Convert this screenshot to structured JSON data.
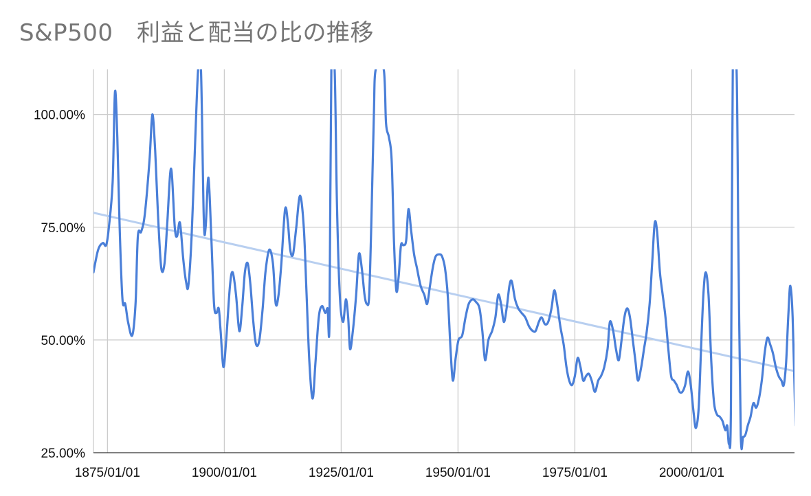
{
  "chart_data": {
    "type": "line",
    "title": "S&P500　利益と配当の比の推移",
    "xlabel": "",
    "ylabel": "",
    "x_ticks": [
      "1875/01/01",
      "1900/01/01",
      "1925/01/01",
      "1950/01/01",
      "1975/01/01",
      "2000/01/01"
    ],
    "y_ticks": [
      "25.00%",
      "50.00%",
      "75.00%",
      "100.00%"
    ],
    "xlim": [
      1872,
      2022
    ],
    "ylim": [
      25,
      110
    ],
    "grid": true,
    "colors": {
      "series": "#4a7fd8",
      "trend": "#b8cff0",
      "grid": "#cccccc"
    },
    "series": [
      {
        "points": [
          [
            1872.0,
            65
          ],
          [
            1873.0,
            70
          ],
          [
            1874.0,
            71.5
          ],
          [
            1874.7,
            71
          ],
          [
            1875.3,
            75
          ],
          [
            1876.1,
            85
          ],
          [
            1876.6,
            105
          ],
          [
            1877.1,
            95
          ],
          [
            1877.6,
            75
          ],
          [
            1878.2,
            59
          ],
          [
            1878.8,
            58
          ],
          [
            1879.4,
            54
          ],
          [
            1880.3,
            51
          ],
          [
            1881.0,
            58
          ],
          [
            1881.5,
            73
          ],
          [
            1882.2,
            74
          ],
          [
            1883.0,
            78
          ],
          [
            1884.0,
            90
          ],
          [
            1884.6,
            100
          ],
          [
            1885.2,
            92
          ],
          [
            1885.8,
            78
          ],
          [
            1886.5,
            66
          ],
          [
            1887.2,
            67
          ],
          [
            1887.8,
            76
          ],
          [
            1888.6,
            88
          ],
          [
            1889.4,
            75
          ],
          [
            1889.9,
            73
          ],
          [
            1890.5,
            76
          ],
          [
            1891.2,
            68
          ],
          [
            1891.8,
            63
          ],
          [
            1892.3,
            62
          ],
          [
            1893.0,
            73
          ],
          [
            1893.8,
            95
          ],
          [
            1894.4,
            110
          ],
          [
            1895.0,
            110
          ],
          [
            1895.6,
            77
          ],
          [
            1896.0,
            75
          ],
          [
            1896.6,
            86
          ],
          [
            1897.2,
            73
          ],
          [
            1897.8,
            58
          ],
          [
            1898.3,
            56
          ],
          [
            1898.8,
            57
          ],
          [
            1899.2,
            52
          ],
          [
            1899.8,
            44
          ],
          [
            1900.4,
            50
          ],
          [
            1901.2,
            62
          ],
          [
            1901.8,
            65
          ],
          [
            1902.5,
            60
          ],
          [
            1903.2,
            52
          ],
          [
            1903.8,
            57
          ],
          [
            1904.4,
            65
          ],
          [
            1905.0,
            67
          ],
          [
            1905.6,
            62
          ],
          [
            1906.2,
            54
          ],
          [
            1906.8,
            49
          ],
          [
            1907.5,
            50
          ],
          [
            1908.2,
            57
          ],
          [
            1908.8,
            65
          ],
          [
            1909.6,
            70
          ],
          [
            1910.4,
            67
          ],
          [
            1911.0,
            58
          ],
          [
            1911.6,
            60
          ],
          [
            1912.2,
            67
          ],
          [
            1913.0,
            79
          ],
          [
            1913.6,
            76
          ],
          [
            1914.1,
            70
          ],
          [
            1914.7,
            69
          ],
          [
            1915.4,
            75
          ],
          [
            1916.2,
            82
          ],
          [
            1917.0,
            75
          ],
          [
            1917.6,
            60
          ],
          [
            1918.2,
            45
          ],
          [
            1918.9,
            37
          ],
          [
            1919.5,
            45
          ],
          [
            1920.2,
            55
          ],
          [
            1920.9,
            57.5
          ],
          [
            1921.6,
            56
          ],
          [
            1922.1,
            57
          ],
          [
            1922.5,
            54
          ],
          [
            1922.9,
            110
          ],
          [
            1923.6,
            110
          ],
          [
            1924.1,
            80
          ],
          [
            1924.7,
            60
          ],
          [
            1925.4,
            54
          ],
          [
            1926.0,
            59
          ],
          [
            1926.5,
            55
          ],
          [
            1926.9,
            48
          ],
          [
            1927.5,
            52
          ],
          [
            1928.2,
            60
          ],
          [
            1928.8,
            69
          ],
          [
            1929.4,
            66
          ],
          [
            1930.0,
            60
          ],
          [
            1930.5,
            58
          ],
          [
            1931.0,
            60
          ],
          [
            1931.5,
            78
          ],
          [
            1932.0,
            100
          ],
          [
            1932.4,
            110
          ],
          [
            1934.1,
            110
          ],
          [
            1934.6,
            98
          ],
          [
            1935.2,
            95
          ],
          [
            1935.8,
            90
          ],
          [
            1936.3,
            72
          ],
          [
            1936.8,
            61
          ],
          [
            1937.3,
            64
          ],
          [
            1937.8,
            71
          ],
          [
            1938.3,
            71
          ],
          [
            1938.9,
            72
          ],
          [
            1939.4,
            79
          ],
          [
            1940.0,
            74
          ],
          [
            1940.6,
            69
          ],
          [
            1941.2,
            66
          ],
          [
            1942.0,
            62
          ],
          [
            1942.8,
            60
          ],
          [
            1943.4,
            58
          ],
          [
            1944.0,
            62
          ],
          [
            1944.6,
            66
          ],
          [
            1945.2,
            68.5
          ],
          [
            1946.0,
            69
          ],
          [
            1946.6,
            68.5
          ],
          [
            1947.2,
            66
          ],
          [
            1947.8,
            60
          ],
          [
            1948.4,
            48
          ],
          [
            1948.9,
            41
          ],
          [
            1949.5,
            46
          ],
          [
            1950.1,
            50
          ],
          [
            1950.9,
            51
          ],
          [
            1951.6,
            55
          ],
          [
            1952.3,
            58
          ],
          [
            1953.1,
            59
          ],
          [
            1953.8,
            58.5
          ],
          [
            1954.6,
            57
          ],
          [
            1955.2,
            52
          ],
          [
            1955.8,
            45.5
          ],
          [
            1956.5,
            50
          ],
          [
            1957.3,
            52
          ],
          [
            1958.0,
            55
          ],
          [
            1958.6,
            60
          ],
          [
            1959.2,
            58
          ],
          [
            1959.8,
            54
          ],
          [
            1960.4,
            57
          ],
          [
            1961.0,
            62
          ],
          [
            1961.5,
            63
          ],
          [
            1962.2,
            59
          ],
          [
            1962.9,
            57
          ],
          [
            1963.6,
            56
          ],
          [
            1964.4,
            55
          ],
          [
            1965.2,
            53
          ],
          [
            1966.0,
            52
          ],
          [
            1966.6,
            52
          ],
          [
            1967.3,
            54
          ],
          [
            1967.9,
            55
          ],
          [
            1968.6,
            53.5
          ],
          [
            1969.3,
            54
          ],
          [
            1970.0,
            57
          ],
          [
            1970.6,
            61
          ],
          [
            1971.2,
            58
          ],
          [
            1971.9,
            53
          ],
          [
            1972.6,
            49
          ],
          [
            1973.2,
            44
          ],
          [
            1973.8,
            41
          ],
          [
            1974.4,
            40
          ],
          [
            1975.0,
            42
          ],
          [
            1975.6,
            46
          ],
          [
            1976.2,
            44
          ],
          [
            1976.8,
            41
          ],
          [
            1977.4,
            42
          ],
          [
            1978.0,
            42.5
          ],
          [
            1978.6,
            41
          ],
          [
            1979.3,
            38.5
          ],
          [
            1980.0,
            41
          ],
          [
            1980.6,
            42
          ],
          [
            1981.3,
            44
          ],
          [
            1982.0,
            48
          ],
          [
            1982.5,
            54
          ],
          [
            1983.2,
            52
          ],
          [
            1983.8,
            48
          ],
          [
            1984.4,
            45.5
          ],
          [
            1985.0,
            50
          ],
          [
            1985.6,
            55
          ],
          [
            1986.2,
            57
          ],
          [
            1986.8,
            55
          ],
          [
            1987.4,
            50
          ],
          [
            1988.0,
            45
          ],
          [
            1988.5,
            41
          ],
          [
            1989.2,
            44
          ],
          [
            1989.8,
            48
          ],
          [
            1990.4,
            52
          ],
          [
            1991.0,
            58
          ],
          [
            1991.6,
            68
          ],
          [
            1992.1,
            76
          ],
          [
            1992.6,
            74
          ],
          [
            1993.2,
            65
          ],
          [
            1993.8,
            60
          ],
          [
            1994.4,
            55
          ],
          [
            1995.0,
            48
          ],
          [
            1995.6,
            42
          ],
          [
            1996.2,
            41
          ],
          [
            1996.8,
            40
          ],
          [
            1997.4,
            38.5
          ],
          [
            1998.0,
            38.5
          ],
          [
            1998.6,
            40
          ],
          [
            1999.2,
            43
          ],
          [
            1999.8,
            40
          ],
          [
            2000.4,
            34
          ],
          [
            2000.9,
            30.5
          ],
          [
            2001.5,
            35
          ],
          [
            2002.0,
            48
          ],
          [
            2002.5,
            60
          ],
          [
            2003.0,
            65
          ],
          [
            2003.6,
            60
          ],
          [
            2004.2,
            45
          ],
          [
            2004.8,
            36
          ],
          [
            2005.4,
            33.5
          ],
          [
            2006.0,
            33
          ],
          [
            2006.6,
            32
          ],
          [
            2007.2,
            30
          ],
          [
            2007.6,
            31
          ],
          [
            2008.0,
            27
          ],
          [
            2008.4,
            35
          ],
          [
            2008.8,
            110
          ],
          [
            2009.6,
            110
          ],
          [
            2010.0,
            70
          ],
          [
            2010.5,
            29
          ],
          [
            2011.0,
            28.5
          ],
          [
            2011.5,
            29
          ],
          [
            2012.0,
            31
          ],
          [
            2012.6,
            33
          ],
          [
            2013.2,
            36
          ],
          [
            2013.8,
            35
          ],
          [
            2014.4,
            37
          ],
          [
            2015.0,
            41
          ],
          [
            2015.6,
            47
          ],
          [
            2016.2,
            50.5
          ],
          [
            2016.8,
            49
          ],
          [
            2017.4,
            47
          ],
          [
            2018.0,
            44
          ],
          [
            2018.6,
            42
          ],
          [
            2019.2,
            41
          ],
          [
            2019.7,
            40
          ],
          [
            2020.2,
            45
          ],
          [
            2020.7,
            56
          ],
          [
            2021.1,
            62
          ],
          [
            2021.6,
            55
          ],
          [
            2022.2,
            31
          ]
        ]
      }
    ],
    "trendline": [
      [
        1872,
        78.2
      ],
      [
        2022,
        43.1
      ]
    ]
  }
}
